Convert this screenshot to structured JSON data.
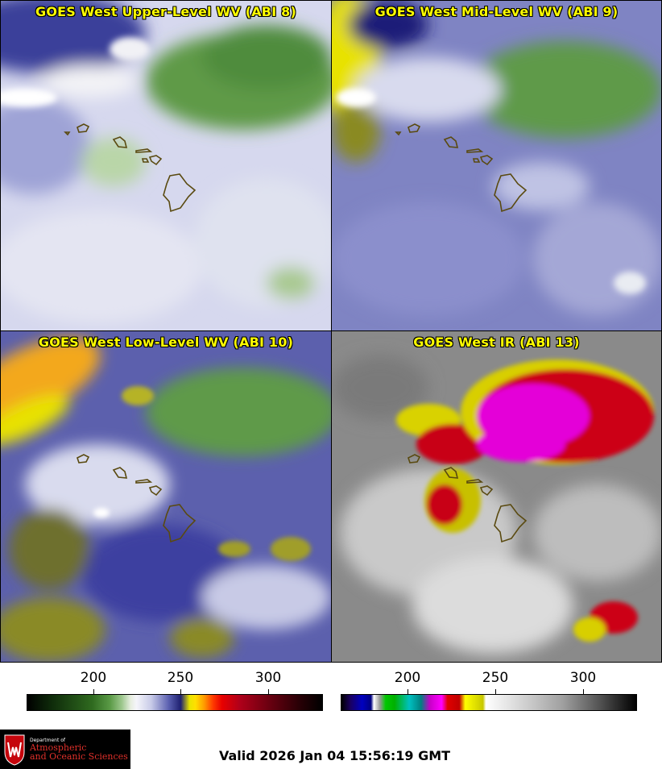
{
  "panels": [
    {
      "title": "GOES West Upper-Level WV (ABI 8)"
    },
    {
      "title": "GOES West Mid-Level WV (ABI 9)"
    },
    {
      "title": "GOES West Low-Level WV (ABI 10)"
    },
    {
      "title": "GOES West IR (ABI 13)"
    }
  ],
  "colorbars": {
    "wv": {
      "ticks": [
        "200",
        "250",
        "300"
      ]
    },
    "ir": {
      "ticks": [
        "200",
        "250",
        "300"
      ]
    }
  },
  "logo": {
    "line1": "Department of",
    "line2": "Atmospheric",
    "line3": "and Oceanic Sciences"
  },
  "valid_time": "Valid 2026 Jan 04 15:56:19 GMT"
}
